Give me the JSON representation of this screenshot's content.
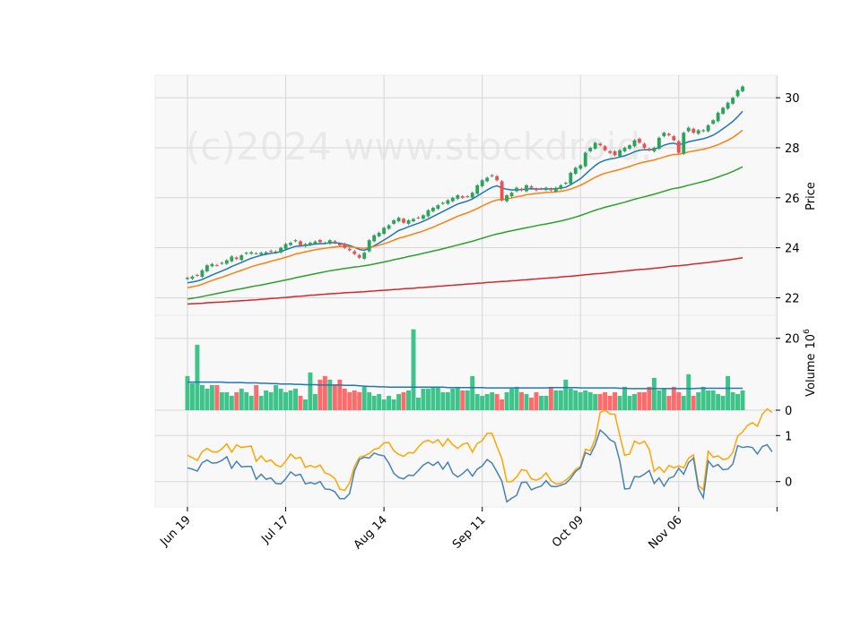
{
  "watermark": "(c)2024 www.stockdroid.",
  "chart_data": [
    {
      "panel": "price",
      "type": "candlestick",
      "ylabel": "Price",
      "ylim": [
        21.3,
        30.9
      ],
      "yticks": [
        22,
        24,
        26,
        28,
        30
      ],
      "x_date_ticks": [
        "Jun 19",
        "Jul 17",
        "Aug 14",
        "Sep 11",
        "Oct 09",
        "Nov 06"
      ],
      "grid": true,
      "candle_colors": {
        "up": "#26a65b",
        "down": "#ef4f4f"
      },
      "close": [
        22.8,
        22.85,
        22.88,
        23.1,
        23.3,
        23.35,
        23.3,
        23.4,
        23.5,
        23.65,
        23.55,
        23.7,
        23.8,
        23.82,
        23.78,
        23.8,
        23.82,
        23.85,
        23.85,
        24.0,
        24.15,
        24.2,
        24.3,
        24.1,
        24.15,
        24.2,
        24.25,
        24.22,
        24.2,
        24.3,
        24.2,
        24.1,
        24.0,
        23.9,
        23.75,
        23.6,
        23.8,
        24.3,
        24.5,
        24.6,
        24.8,
        24.9,
        25.1,
        25.2,
        25.0,
        25.1,
        25.15,
        25.2,
        25.3,
        25.5,
        25.6,
        25.7,
        25.8,
        25.9,
        26.0,
        26.1,
        26.0,
        26.05,
        26.2,
        26.5,
        26.7,
        26.8,
        26.9,
        26.7,
        25.9,
        26.1,
        26.2,
        26.4,
        26.3,
        26.5,
        26.4,
        26.3,
        26.35,
        26.4,
        26.3,
        26.4,
        26.5,
        26.6,
        27.0,
        27.2,
        27.3,
        27.8,
        28.0,
        28.2,
        28.1,
        27.9,
        27.8,
        27.7,
        27.9,
        28.0,
        28.1,
        28.3,
        28.2,
        28.0,
        27.9,
        28.0,
        28.4,
        28.6,
        28.5,
        28.3,
        27.8,
        28.6,
        28.8,
        28.6,
        28.7,
        28.7,
        28.9,
        29.1,
        29.4,
        29.6,
        29.8,
        30.0,
        30.3,
        30.45
      ],
      "series": [
        {
          "name": "",
          "color": "#1f77b4",
          "values": [
            22.6,
            22.63,
            22.67,
            22.73,
            22.82,
            22.91,
            22.99,
            23.07,
            23.15,
            23.25,
            23.33,
            23.41,
            23.5,
            23.58,
            23.64,
            23.7,
            23.74,
            23.78,
            23.8,
            23.85,
            23.92,
            23.99,
            24.06,
            24.07,
            24.09,
            24.12,
            24.15,
            24.16,
            24.17,
            24.2,
            24.2,
            24.18,
            24.14,
            24.09,
            24.02,
            23.93,
            23.9,
            23.98,
            24.08,
            24.19,
            24.31,
            24.43,
            24.56,
            24.69,
            24.76,
            24.84,
            24.91,
            24.98,
            25.06,
            25.15,
            25.25,
            25.35,
            25.45,
            25.55,
            25.65,
            25.75,
            25.81,
            25.87,
            25.95,
            26.07,
            26.19,
            26.31,
            26.42,
            26.48,
            26.39,
            26.34,
            26.31,
            26.32,
            26.32,
            26.35,
            26.36,
            26.35,
            26.35,
            26.36,
            26.35,
            26.36,
            26.38,
            26.42,
            26.52,
            26.64,
            26.76,
            26.94,
            27.12,
            27.29,
            27.42,
            27.5,
            27.55,
            27.58,
            27.63,
            27.68,
            27.75,
            27.84,
            27.9,
            27.92,
            27.92,
            27.94,
            28.01,
            28.1,
            28.16,
            28.18,
            28.12,
            28.17,
            28.24,
            28.28,
            28.32,
            28.36,
            28.42,
            28.5,
            28.62,
            28.76,
            28.9,
            29.05,
            29.24,
            29.46
          ]
        },
        {
          "name": "",
          "color": "#ff7f0e",
          "values": [
            22.4,
            22.44,
            22.48,
            22.54,
            22.62,
            22.69,
            22.76,
            22.82,
            22.89,
            22.96,
            23.03,
            23.1,
            23.17,
            23.24,
            23.3,
            23.35,
            23.4,
            23.46,
            23.51,
            23.56,
            23.62,
            23.68,
            23.75,
            23.79,
            23.84,
            23.88,
            23.92,
            23.95,
            23.98,
            24.01,
            24.03,
            24.05,
            24.05,
            24.04,
            24.02,
            23.99,
            23.98,
            24.01,
            24.05,
            24.1,
            24.16,
            24.22,
            24.3,
            24.38,
            24.43,
            24.49,
            24.55,
            24.61,
            24.67,
            24.75,
            24.82,
            24.91,
            24.99,
            25.08,
            25.17,
            25.26,
            25.33,
            25.4,
            25.48,
            25.57,
            25.67,
            25.76,
            25.85,
            25.91,
            25.92,
            25.95,
            25.99,
            26.04,
            26.07,
            26.12,
            26.15,
            26.17,
            26.19,
            26.21,
            26.22,
            26.24,
            26.26,
            26.29,
            26.35,
            26.42,
            26.5,
            26.6,
            26.71,
            26.82,
            26.91,
            26.98,
            27.03,
            27.08,
            27.13,
            27.19,
            27.25,
            27.32,
            27.38,
            27.43,
            27.47,
            27.51,
            27.57,
            27.63,
            27.69,
            27.73,
            27.74,
            27.78,
            27.83,
            27.87,
            27.9,
            27.94,
            27.99,
            28.05,
            28.12,
            28.21,
            28.3,
            28.41,
            28.55,
            28.7
          ]
        },
        {
          "name": "",
          "color": "#2ca02c",
          "values": [
            21.95,
            21.98,
            22.01,
            22.05,
            22.09,
            22.13,
            22.17,
            22.21,
            22.25,
            22.29,
            22.33,
            22.36,
            22.4,
            22.44,
            22.48,
            22.51,
            22.55,
            22.59,
            22.63,
            22.67,
            22.71,
            22.75,
            22.8,
            22.84,
            22.88,
            22.92,
            22.96,
            23.0,
            23.04,
            23.08,
            23.11,
            23.14,
            23.17,
            23.2,
            23.23,
            23.25,
            23.28,
            23.31,
            23.35,
            23.39,
            23.43,
            23.47,
            23.52,
            23.56,
            23.6,
            23.65,
            23.69,
            23.73,
            23.78,
            23.82,
            23.87,
            23.91,
            23.96,
            24.01,
            24.06,
            24.11,
            24.16,
            24.21,
            24.26,
            24.32,
            24.38,
            24.44,
            24.5,
            24.55,
            24.59,
            24.64,
            24.68,
            24.72,
            24.76,
            24.8,
            24.84,
            24.88,
            24.92,
            24.95,
            24.99,
            25.03,
            25.07,
            25.12,
            25.17,
            25.23,
            25.29,
            25.36,
            25.43,
            25.5,
            25.56,
            25.62,
            25.67,
            25.72,
            25.77,
            25.82,
            25.88,
            25.94,
            25.99,
            26.04,
            26.09,
            26.14,
            26.2,
            26.26,
            26.32,
            26.37,
            26.4,
            26.45,
            26.5,
            26.55,
            26.6,
            26.65,
            26.7,
            26.76,
            26.83,
            26.9,
            26.97,
            27.05,
            27.14,
            27.24
          ]
        },
        {
          "name": "",
          "color": "#d62728",
          "values": [
            21.75,
            21.76,
            21.77,
            21.78,
            21.8,
            21.81,
            21.82,
            21.83,
            21.84,
            21.86,
            21.87,
            21.88,
            21.89,
            21.91,
            21.92,
            21.94,
            21.95,
            21.97,
            21.98,
            22.0,
            22.01,
            22.03,
            22.05,
            22.06,
            22.08,
            22.1,
            22.11,
            22.13,
            22.14,
            22.16,
            22.17,
            22.18,
            22.2,
            22.21,
            22.22,
            22.23,
            22.24,
            22.26,
            22.27,
            22.29,
            22.3,
            22.31,
            22.33,
            22.34,
            22.36,
            22.37,
            22.38,
            22.4,
            22.41,
            22.43,
            22.44,
            22.46,
            22.47,
            22.49,
            22.5,
            22.52,
            22.53,
            22.55,
            22.56,
            22.58,
            22.59,
            22.61,
            22.62,
            22.64,
            22.65,
            22.66,
            22.68,
            22.69,
            22.71,
            22.72,
            22.74,
            22.75,
            22.77,
            22.78,
            22.8,
            22.81,
            22.83,
            22.85,
            22.86,
            22.88,
            22.9,
            22.92,
            22.94,
            22.96,
            22.97,
            22.99,
            23.01,
            23.03,
            23.05,
            23.07,
            23.09,
            23.11,
            23.13,
            23.14,
            23.16,
            23.18,
            23.2,
            23.22,
            23.25,
            23.27,
            23.28,
            23.3,
            23.32,
            23.35,
            23.37,
            23.39,
            23.41,
            23.44,
            23.46,
            23.49,
            23.51,
            23.54,
            23.57,
            23.6
          ]
        }
      ]
    },
    {
      "panel": "volume",
      "type": "bar",
      "ylabel": "Volume  10^6",
      "ylabel_main": "Volume",
      "ylabel_exp": "6",
      "ylabel_base": "10",
      "ylim": [
        0,
        26.4
      ],
      "yticks": [
        0,
        20
      ],
      "values": [
        9.5,
        7.5,
        18.2,
        7.0,
        6.0,
        7.0,
        7.0,
        5.0,
        5.0,
        4.0,
        5.0,
        6.0,
        5.0,
        4.0,
        7.0,
        4.0,
        5.5,
        5.0,
        7.0,
        6.0,
        5.0,
        5.5,
        6.0,
        4.0,
        3.0,
        10.5,
        4.5,
        8.5,
        9.5,
        8.5,
        7.0,
        8.5,
        6.0,
        5.0,
        5.5,
        5.0,
        6.5,
        5.0,
        4.0,
        4.5,
        3.0,
        4.0,
        3.0,
        4.5,
        5.0,
        5.5,
        22.5,
        3.5,
        6.0,
        6.0,
        6.5,
        6.5,
        5.0,
        5.0,
        6.0,
        6.5,
        5.5,
        5.5,
        9.5,
        4.5,
        4.0,
        4.5,
        5.0,
        4.5,
        3.0,
        5.0,
        6.0,
        6.5,
        5.0,
        4.5,
        3.5,
        5.0,
        4.0,
        4.0,
        6.5,
        5.5,
        5.5,
        8.5,
        6.0,
        5.5,
        5.0,
        5.5,
        5.0,
        4.5,
        4.5,
        5.0,
        4.0,
        5.0,
        4.0,
        6.5,
        4.0,
        4.5,
        5.0,
        5.0,
        6.5,
        9.0,
        5.5,
        6.0,
        4.0,
        6.5,
        5.0,
        4.0,
        10.0,
        4.0,
        5.0,
        6.5,
        5.5,
        5.5,
        4.5,
        4.0,
        9.5,
        5.0,
        4.5,
        5.5
      ],
      "series": [
        {
          "name": "",
          "color": "#1f77b4",
          "values": [
            7.8,
            7.8,
            7.8,
            7.8,
            7.8,
            7.8,
            7.8,
            7.8,
            7.7,
            7.7,
            7.7,
            7.7,
            7.6,
            7.6,
            7.6,
            7.5,
            7.5,
            7.4,
            7.4,
            7.3,
            7.3,
            7.3,
            7.2,
            7.2,
            7.1,
            7.1,
            7.1,
            7.0,
            7.0,
            7.0,
            7.0,
            7.0,
            6.9,
            6.9,
            6.9,
            6.8,
            6.7,
            6.6,
            6.6,
            6.5,
            6.5,
            6.4,
            6.4,
            6.4,
            6.4,
            6.4,
            6.4,
            6.4,
            6.4,
            6.4,
            6.4,
            6.4,
            6.4,
            6.3,
            6.3,
            6.3,
            6.3,
            6.3,
            6.3,
            6.3,
            6.3,
            6.2,
            6.2,
            6.2,
            6.2,
            6.2,
            6.2,
            6.2,
            6.2,
            6.2,
            6.2,
            6.2,
            6.2,
            6.2,
            6.3,
            6.3,
            6.3,
            6.3,
            6.3,
            6.3,
            6.2,
            6.2,
            6.2,
            6.2,
            6.2,
            6.2,
            6.2,
            6.2,
            6.1,
            6.1,
            6.0,
            6.0,
            6.0,
            6.0,
            6.0,
            6.0,
            6.0,
            6.0,
            6.0,
            6.0,
            6.0,
            6.0,
            6.0,
            6.0,
            6.1,
            6.1,
            6.1,
            6.1,
            6.1,
            6.1,
            6.1,
            6.1,
            6.1,
            6.1
          ]
        }
      ]
    },
    {
      "panel": "indicator",
      "type": "line",
      "ylabel": "",
      "ylim": [
        -0.55,
        1.55
      ],
      "yticks": [
        0,
        1
      ],
      "series": [
        {
          "name": "",
          "color": "#ffa500",
          "values": [
            0.57,
            0.52,
            0.46,
            0.65,
            0.72,
            0.65,
            0.64,
            0.71,
            0.82,
            0.64,
            0.8,
            0.74,
            0.76,
            0.77,
            0.44,
            0.56,
            0.43,
            0.47,
            0.36,
            0.32,
            0.44,
            0.6,
            0.5,
            0.53,
            0.31,
            0.35,
            0.31,
            0.36,
            0.19,
            0.15,
            0.07,
            -0.16,
            -0.19,
            -0.03,
            0.33,
            0.53,
            0.56,
            0.61,
            0.7,
            0.73,
            0.84,
            0.85,
            0.67,
            0.59,
            0.55,
            0.63,
            0.62,
            0.75,
            0.86,
            0.9,
            0.84,
            0.91,
            0.77,
            0.93,
            0.8,
            0.72,
            0.81,
            0.84,
            0.64,
            0.83,
            0.89,
            1.05,
            1.05,
            0.76,
            0.5,
            0.0,
            0.0,
            0.1,
            0.26,
            0.24,
            0.06,
            0.03,
            0.08,
            0.19,
            0.02,
            -0.05,
            -0.04,
            0.03,
            0.13,
            0.26,
            0.33,
            0.7,
            0.67,
            0.93,
            1.5,
            1.55,
            1.47,
            1.46,
            1.0,
            0.57,
            0.6,
            0.88,
            0.82,
            0.88,
            0.7,
            0.22,
            0.32,
            0.2,
            0.35,
            0.3,
            0.34,
            0.3,
            0.51,
            0.58,
            -0.08,
            -0.18,
            0.66,
            0.53,
            0.56,
            0.48,
            0.5,
            0.63,
            0.99,
            1.08,
            1.22,
            1.28,
            1.2,
            1.46,
            1.58,
            1.5
          ]
        },
        {
          "name": "",
          "color": "#4682b4",
          "values": [
            0.3,
            0.27,
            0.23,
            0.41,
            0.47,
            0.4,
            0.41,
            0.46,
            0.54,
            0.29,
            0.44,
            0.32,
            0.33,
            0.33,
            0.05,
            0.16,
            0.05,
            0.08,
            -0.04,
            -0.05,
            0.06,
            0.21,
            0.13,
            0.16,
            -0.05,
            -0.02,
            -0.05,
            0.0,
            -0.16,
            -0.17,
            -0.22,
            -0.37,
            -0.37,
            -0.26,
            0.23,
            0.48,
            0.53,
            0.51,
            0.62,
            0.58,
            0.56,
            0.4,
            0.18,
            0.09,
            0.06,
            0.14,
            0.13,
            0.24,
            0.36,
            0.42,
            0.35,
            0.43,
            0.27,
            0.42,
            0.18,
            0.1,
            0.17,
            0.27,
            0.12,
            0.27,
            0.34,
            0.48,
            0.4,
            0.21,
            0.01,
            -0.44,
            -0.36,
            -0.3,
            -0.02,
            -0.01,
            -0.18,
            -0.13,
            -0.1,
            0.02,
            -0.1,
            -0.11,
            -0.08,
            -0.04,
            0.07,
            0.22,
            0.3,
            0.63,
            0.58,
            0.8,
            1.12,
            1.03,
            0.91,
            0.85,
            0.45,
            -0.16,
            -0.15,
            0.11,
            0.1,
            0.16,
            0.24,
            -0.04,
            0.08,
            -0.1,
            0.07,
            0.11,
            0.29,
            0.16,
            0.41,
            0.51,
            -0.15,
            -0.35,
            0.45,
            0.32,
            0.37,
            0.26,
            0.27,
            0.38,
            0.78,
            0.74,
            0.76,
            0.74,
            0.6,
            0.76,
            0.8,
            0.65
          ]
        }
      ]
    }
  ]
}
